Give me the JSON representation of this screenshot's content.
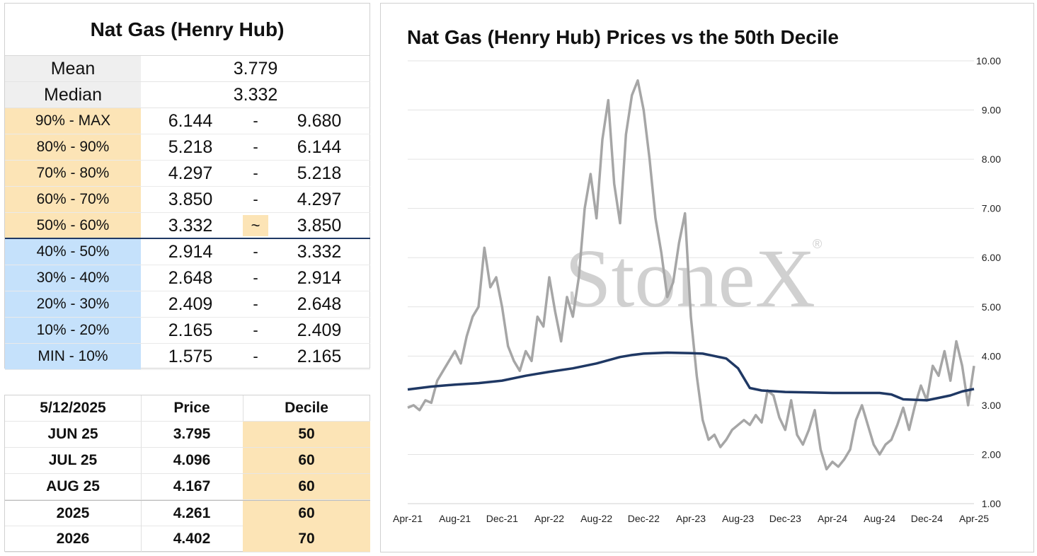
{
  "stats": {
    "title": "Nat Gas (Henry Hub)",
    "mean_label": "Mean",
    "mean_value": "3.779",
    "median_label": "Median",
    "median_value": "3.332",
    "deciles": [
      {
        "label": "90% - MAX",
        "lo": "6.144",
        "sep": "-",
        "hi": "9.680",
        "band": "orange"
      },
      {
        "label": "80% - 90%",
        "lo": "5.218",
        "sep": "-",
        "hi": "6.144",
        "band": "orange"
      },
      {
        "label": "70% - 80%",
        "lo": "4.297",
        "sep": "-",
        "hi": "5.218",
        "band": "orange"
      },
      {
        "label": "60% - 70%",
        "lo": "3.850",
        "sep": "-",
        "hi": "4.297",
        "band": "orange"
      },
      {
        "label": "50% - 60%",
        "lo": "3.332",
        "sep": "~",
        "hi": "3.850",
        "band": "orange",
        "current": true
      },
      {
        "label": "40% - 50%",
        "lo": "2.914",
        "sep": "-",
        "hi": "3.332",
        "band": "blue"
      },
      {
        "label": "30% - 40%",
        "lo": "2.648",
        "sep": "-",
        "hi": "2.914",
        "band": "blue"
      },
      {
        "label": "20% - 30%",
        "lo": "2.409",
        "sep": "-",
        "hi": "2.648",
        "band": "blue"
      },
      {
        "label": "10% - 20%",
        "lo": "2.165",
        "sep": "-",
        "hi": "2.409",
        "band": "blue"
      },
      {
        "label": "MIN - 10%",
        "lo": "1.575",
        "sep": "-",
        "hi": "2.165",
        "band": "blue"
      }
    ]
  },
  "prices": {
    "header": {
      "date": "5/12/2025",
      "price": "Price",
      "decile": "Decile"
    },
    "rows": [
      {
        "contract": "JUN 25",
        "price": "3.795",
        "decile": "50"
      },
      {
        "contract": "JUL 25",
        "price": "4.096",
        "decile": "60"
      },
      {
        "contract": "AUG 25",
        "price": "4.167",
        "decile": "60"
      },
      {
        "contract": "2025",
        "price": "4.261",
        "decile": "60"
      },
      {
        "contract": "2026",
        "price": "4.402",
        "decile": "70"
      }
    ]
  },
  "colors": {
    "orange": "#fce4b6",
    "blue": "#c5e1fb",
    "price_line": "#a6a6a6",
    "decile_line": "#1f3864",
    "watermark": "#d0d0d0"
  },
  "watermark": {
    "text": "StoneX",
    "mark": "®"
  },
  "chart_data": {
    "type": "line",
    "title": "Nat Gas (Henry Hub) Prices vs the 50th Decile",
    "x_tick_labels": [
      "Apr-21",
      "Aug-21",
      "Dec-21",
      "Apr-22",
      "Aug-22",
      "Dec-22",
      "Apr-23",
      "Aug-23",
      "Dec-23",
      "Apr-24",
      "Aug-24",
      "Dec-24",
      "Apr-25"
    ],
    "y_tick_labels": [
      "1.00",
      "2.00",
      "3.00",
      "4.00",
      "5.00",
      "6.00",
      "7.00",
      "8.00",
      "9.00",
      "10.00"
    ],
    "ylim": [
      1,
      10
    ],
    "xlim": [
      0,
      48
    ],
    "x_unit": "months since Apr-21",
    "y_axis_position": "right",
    "grid": "horizontal",
    "series": [
      {
        "name": "Price",
        "x": [
          0,
          0.5,
          1,
          1.5,
          2,
          2.5,
          3,
          3.5,
          4,
          4.5,
          5,
          5.5,
          6,
          6.5,
          7,
          7.5,
          8,
          8.5,
          9,
          9.5,
          10,
          10.5,
          11,
          11.5,
          12,
          12.5,
          13,
          13.5,
          14,
          14.5,
          15,
          15.5,
          16,
          16.5,
          17,
          17.5,
          18,
          18.5,
          19,
          19.5,
          20,
          20.5,
          21,
          21.5,
          22,
          22.5,
          23,
          23.5,
          24,
          24.5,
          25,
          25.5,
          26,
          26.5,
          27,
          27.5,
          28,
          28.5,
          29,
          29.5,
          30,
          30.5,
          31,
          31.5,
          32,
          32.5,
          33,
          33.5,
          34,
          34.5,
          35,
          35.5,
          36,
          36.5,
          37,
          37.5,
          38,
          38.5,
          39,
          39.5,
          40,
          40.5,
          41,
          41.5,
          42,
          42.5,
          43,
          43.5,
          44,
          44.5,
          45,
          45.5,
          46,
          46.5,
          47,
          47.5,
          48
        ],
        "y": [
          2.95,
          3.0,
          2.9,
          3.1,
          3.05,
          3.5,
          3.7,
          3.9,
          4.1,
          3.85,
          4.4,
          4.8,
          5.0,
          6.2,
          5.4,
          5.6,
          5.0,
          4.2,
          3.9,
          3.7,
          4.1,
          3.9,
          4.8,
          4.6,
          5.6,
          4.9,
          4.3,
          5.2,
          4.8,
          5.6,
          7.0,
          7.7,
          6.8,
          8.4,
          9.2,
          7.5,
          6.7,
          8.5,
          9.3,
          9.6,
          9.0,
          8.0,
          6.8,
          6.1,
          5.2,
          5.5,
          6.3,
          6.9,
          4.8,
          3.6,
          2.7,
          2.3,
          2.4,
          2.15,
          2.3,
          2.5,
          2.6,
          2.7,
          2.6,
          2.8,
          2.65,
          3.3,
          3.2,
          2.75,
          2.5,
          3.1,
          2.4,
          2.2,
          2.5,
          2.9,
          2.1,
          1.7,
          1.85,
          1.75,
          1.9,
          2.1,
          2.7,
          3.0,
          2.6,
          2.2,
          2.0,
          2.2,
          2.3,
          2.6,
          2.95,
          2.5,
          3.0,
          3.4,
          3.1,
          3.8,
          3.6,
          4.1,
          3.5,
          4.3,
          3.8,
          3.0,
          3.8
        ]
      },
      {
        "name": "50th Decile",
        "x": [
          0,
          2,
          4,
          6,
          8,
          10,
          12,
          14,
          16,
          18,
          19,
          20,
          22,
          24,
          25,
          26,
          27,
          28,
          29,
          30,
          32,
          34,
          36,
          38,
          40,
          41,
          42,
          44,
          45,
          46,
          47,
          48
        ],
        "y": [
          3.32,
          3.38,
          3.42,
          3.45,
          3.5,
          3.6,
          3.68,
          3.75,
          3.85,
          3.98,
          4.02,
          4.05,
          4.07,
          4.06,
          4.05,
          4.0,
          3.95,
          3.75,
          3.35,
          3.3,
          3.27,
          3.26,
          3.25,
          3.25,
          3.25,
          3.22,
          3.12,
          3.1,
          3.15,
          3.2,
          3.28,
          3.33
        ]
      }
    ]
  }
}
